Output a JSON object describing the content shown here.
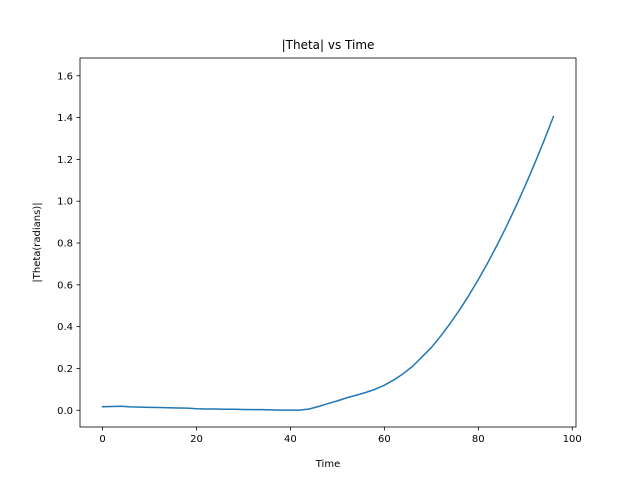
{
  "chart_data": {
    "type": "line",
    "title": "|Theta| vs Time",
    "xlabel": "Time",
    "ylabel": "|Theta(radians)|",
    "xlim": [
      -4.8,
      100.8
    ],
    "ylim": [
      -0.08,
      1.685
    ],
    "xticks": [
      0,
      20,
      40,
      60,
      80,
      100
    ],
    "yticks": [
      0.0,
      0.2,
      0.4,
      0.6,
      0.8,
      1.0,
      1.2,
      1.4,
      1.6
    ],
    "xtick_labels": [
      "0",
      "20",
      "40",
      "60",
      "80",
      "100"
    ],
    "ytick_labels": [
      "0.0",
      "0.2",
      "0.4",
      "0.6",
      "0.8",
      "1.0",
      "1.2",
      "1.4",
      "1.6"
    ],
    "grid": false,
    "series": [
      {
        "color": "#1f77b4",
        "x": [
          0,
          2,
          4,
          6,
          8,
          10,
          12,
          14,
          16,
          18,
          20,
          22,
          24,
          26,
          28,
          30,
          32,
          34,
          36,
          38,
          40,
          42,
          44,
          46,
          48,
          50,
          52,
          54,
          56,
          58,
          60,
          62,
          64,
          66,
          68,
          70,
          72,
          74,
          76,
          78,
          80,
          82,
          84,
          86,
          88,
          90,
          92,
          94,
          96
        ],
        "y": [
          0.017,
          0.018,
          0.019,
          0.016,
          0.015,
          0.014,
          0.013,
          0.012,
          0.011,
          0.01,
          0.007,
          0.006,
          0.006,
          0.005,
          0.005,
          0.004,
          0.003,
          0.003,
          0.002,
          0.001,
          0.001,
          0.001,
          0.006,
          0.018,
          0.032,
          0.045,
          0.06,
          0.072,
          0.085,
          0.1,
          0.12,
          0.145,
          0.175,
          0.21,
          0.255,
          0.3,
          0.355,
          0.415,
          0.48,
          0.55,
          0.625,
          0.705,
          0.79,
          0.88,
          0.975,
          1.075,
          1.18,
          1.29,
          1.405
        ]
      }
    ]
  }
}
